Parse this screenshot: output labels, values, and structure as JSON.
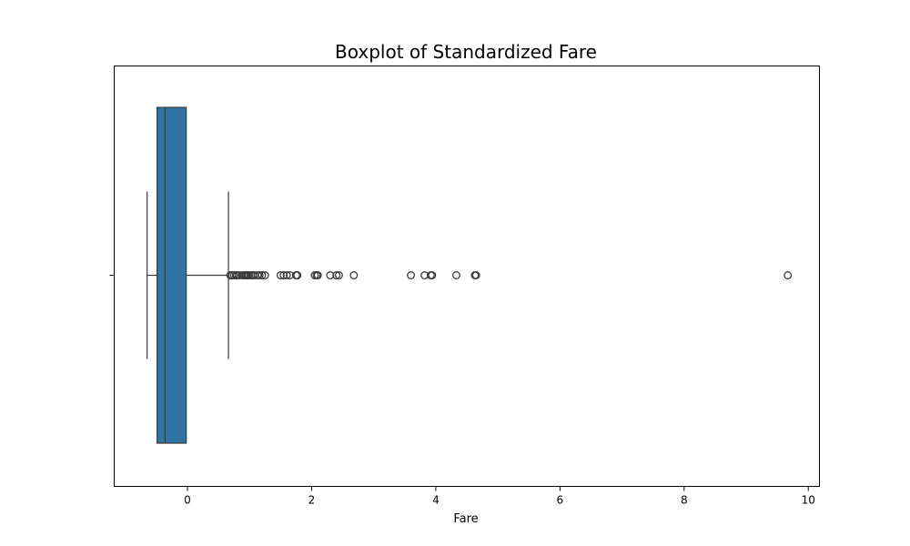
{
  "chart_data": {
    "type": "box",
    "title": "Boxplot of Standardized Fare",
    "xlabel": "Fare",
    "ylabel": "",
    "xlim": [
      -1.18,
      10.18
    ],
    "x_ticks": [
      0,
      2,
      4,
      6,
      8,
      10
    ],
    "x_tick_labels": [
      "0",
      "2",
      "4",
      "6",
      "8",
      "10"
    ],
    "orientation": "horizontal",
    "grid": false,
    "colors": {
      "box_fill": "#3274a1",
      "line": "#3a3a3a",
      "frame": "#000000"
    },
    "boxes": [
      {
        "whisker_low": -0.65,
        "q1": -0.49,
        "median": -0.36,
        "q3": -0.02,
        "whisker_high": 0.66,
        "outliers": [
          0.69,
          0.72,
          0.75,
          0.78,
          0.8,
          0.83,
          0.88,
          0.91,
          0.93,
          0.95,
          0.97,
          0.99,
          1.02,
          1.05,
          1.08,
          1.13,
          1.16,
          1.2,
          1.25,
          1.5,
          1.55,
          1.6,
          1.65,
          1.75,
          1.77,
          2.05,
          2.08,
          2.1,
          2.3,
          2.4,
          2.44,
          2.68,
          3.6,
          3.82,
          3.92,
          3.94,
          4.33,
          4.63,
          4.65,
          9.67
        ]
      }
    ]
  }
}
